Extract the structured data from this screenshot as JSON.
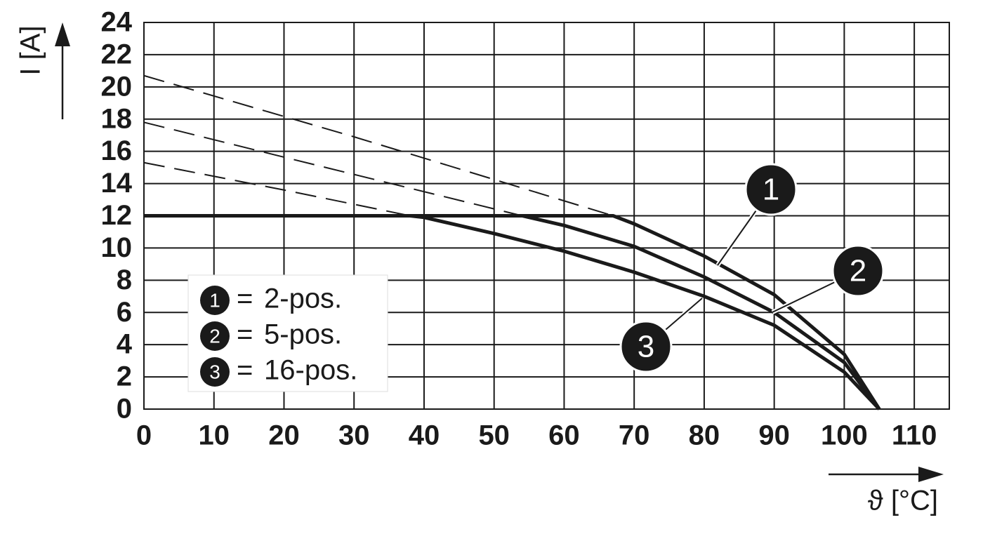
{
  "chart_data": {
    "type": "line",
    "ylabel": "I [A]",
    "xlabel": "ϑ [°C]",
    "xlim": [
      0,
      115
    ],
    "xticks": [
      0,
      10,
      20,
      30,
      40,
      50,
      60,
      70,
      80,
      90,
      100,
      110
    ],
    "ylim": [
      0,
      24
    ],
    "yticks": [
      0,
      2,
      4,
      6,
      8,
      10,
      12,
      14,
      16,
      18,
      20,
      22,
      24
    ],
    "grid": true,
    "legend": "lower left",
    "legend_separator": "=",
    "series": [
      {
        "name": "2-pos.",
        "marker": "1",
        "color": "#1a1a1a",
        "x": [
          0,
          67,
          70,
          80,
          90,
          100,
          105
        ],
        "values": [
          12,
          12,
          11.5,
          9.5,
          7.1,
          3.4,
          0
        ],
        "extrapolation_x": [
          0,
          30,
          67
        ],
        "extrapolation": [
          20.7,
          16.9,
          12
        ]
      },
      {
        "name": "5-pos.",
        "marker": "2",
        "color": "#1a1a1a",
        "x": [
          0,
          54,
          60,
          70,
          80,
          90,
          100,
          105
        ],
        "values": [
          12,
          12,
          11.4,
          10.1,
          8.2,
          6.0,
          2.9,
          0
        ],
        "extrapolation_x": [
          0,
          25,
          54
        ],
        "extrapolation": [
          17.8,
          15.1,
          12
        ]
      },
      {
        "name": "16-pos.",
        "marker": "3",
        "color": "#1a1a1a",
        "x": [
          0,
          38,
          40,
          50,
          60,
          70,
          80,
          90,
          100,
          105
        ],
        "values": [
          12,
          12,
          11.9,
          10.9,
          9.8,
          8.5,
          7.0,
          5.2,
          2.3,
          0
        ],
        "extrapolation_x": [
          0,
          20,
          38
        ],
        "extrapolation": [
          15.3,
          13.6,
          12
        ]
      }
    ]
  }
}
